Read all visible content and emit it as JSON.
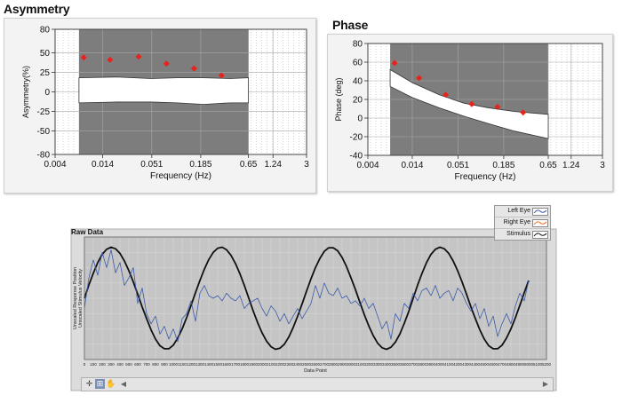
{
  "colors": {
    "plot_bg": "#7d7d7d",
    "band": "#ffffff",
    "marker": "#e8231b",
    "left_eye": "#3c5aa8",
    "right_eye": "#f26a2e",
    "stimulus": "#111111",
    "raw_bg": "#c5c5c5"
  },
  "chart_data": [
    {
      "type": "scatter",
      "title": "Asymmetry",
      "xlabel": "Frequency (Hz)",
      "ylabel": "Asymmetry(%)",
      "x_scale": "log",
      "x_ticks": [
        "0.004",
        "0.014",
        "0.051",
        "0.185",
        "0.65",
        "1.24",
        "3"
      ],
      "y_ticks": [
        "80",
        "50",
        "25",
        "0",
        "-25",
        "-50",
        "-80"
      ],
      "ylim": [
        -80,
        80
      ],
      "xlim": [
        0.004,
        3
      ],
      "shaded_range_hz": [
        0.0075,
        0.65
      ],
      "points": [
        {
          "x": 0.0085,
          "y": 44
        },
        {
          "x": 0.017,
          "y": 41
        },
        {
          "x": 0.036,
          "y": 45
        },
        {
          "x": 0.075,
          "y": 36
        },
        {
          "x": 0.155,
          "y": 30
        },
        {
          "x": 0.32,
          "y": 21
        }
      ],
      "band": {
        "x": [
          0.0075,
          0.02,
          0.05,
          0.1,
          0.2,
          0.4,
          0.65
        ],
        "upper": [
          18,
          19,
          17,
          18,
          18,
          17,
          18
        ],
        "lower": [
          -14,
          -13,
          -13,
          -14,
          -16,
          -14,
          -14
        ]
      }
    },
    {
      "type": "scatter",
      "title": "Phase",
      "xlabel": "Frequency (Hz)",
      "ylabel": "Phase (deg)",
      "x_scale": "log",
      "x_ticks": [
        "0.004",
        "0.014",
        "0.051",
        "0.185",
        "0.65",
        "1.24",
        "3"
      ],
      "y_ticks": [
        "80",
        "60",
        "40",
        "20",
        "0",
        "-20",
        "-40"
      ],
      "ylim": [
        -40,
        80
      ],
      "xlim": [
        0.004,
        3
      ],
      "shaded_range_hz": [
        0.0075,
        0.65
      ],
      "points": [
        {
          "x": 0.0085,
          "y": 59
        },
        {
          "x": 0.017,
          "y": 43
        },
        {
          "x": 0.036,
          "y": 25
        },
        {
          "x": 0.075,
          "y": 15
        },
        {
          "x": 0.155,
          "y": 12
        },
        {
          "x": 0.32,
          "y": 6
        }
      ],
      "band": {
        "x": [
          0.0075,
          0.014,
          0.03,
          0.06,
          0.12,
          0.25,
          0.65
        ],
        "upper": [
          52,
          38,
          25,
          16,
          11,
          7,
          4
        ],
        "lower": [
          34,
          22,
          11,
          2,
          -6,
          -14,
          -22
        ]
      }
    },
    {
      "type": "line",
      "title": "Raw Data",
      "xlabel": "Data Point",
      "ylabel": "Unscaled Response Position / Unscaled Stimulus Velocity",
      "ylabel_lines": [
        "Unscaled Response Position",
        "Unscaled Stimulus Velocity"
      ],
      "xlim": [
        0,
        5200
      ],
      "ylim": [
        -1.2,
        1.2
      ],
      "x_ticks": [
        "0",
        "100",
        "200",
        "300",
        "400",
        "500",
        "600",
        "700",
        "800",
        "900",
        "1000",
        "1100",
        "1200",
        "1300",
        "1400",
        "1500",
        "1600",
        "1700",
        "1800",
        "1900",
        "2000",
        "2100",
        "2200",
        "2300",
        "2400",
        "2500",
        "2600",
        "2700",
        "2800",
        "2900",
        "3000",
        "3100",
        "3200",
        "3300",
        "3400",
        "3500",
        "3600",
        "3700",
        "3800",
        "3900",
        "4000",
        "4100",
        "4200",
        "4300",
        "4400",
        "4500",
        "4600",
        "4700",
        "4800",
        "4900",
        "5000",
        "5100",
        "5200"
      ],
      "legend": [
        "Left Eye",
        "Right Eye",
        "Stimulus"
      ],
      "series": [
        {
          "name": "Stimulus",
          "x": [
            0,
            50,
            100,
            150,
            200,
            250,
            300,
            350,
            400,
            450,
            500,
            550,
            600,
            650,
            700,
            750,
            800,
            850,
            900,
            950,
            1000,
            1050,
            1100,
            1150,
            1200,
            1250,
            1300,
            1350,
            1400,
            1450,
            1500,
            1550,
            1600,
            1650,
            1700,
            1750,
            1800,
            1850,
            1900,
            1950,
            2000,
            2050,
            2100,
            2150,
            2200,
            2250,
            2300,
            2350,
            2400,
            2450,
            2500,
            2550,
            2600,
            2650,
            2700,
            2750,
            2800,
            2850,
            2900,
            2950,
            3000,
            3050,
            3100,
            3150,
            3200,
            3250,
            3300,
            3350,
            3400,
            3450,
            3500,
            3550,
            3600,
            3650,
            3700,
            3750,
            3800,
            3850,
            3900,
            3950,
            4000,
            4050,
            4100,
            4150,
            4200,
            4250,
            4300,
            4350,
            4400,
            4450,
            4500,
            4550,
            4600,
            4650,
            4700,
            4750,
            4800,
            4850,
            4900,
            4950,
            5000
          ],
          "y": [
            0.0,
            0.26,
            0.49,
            0.7,
            0.86,
            0.96,
            1.0,
            0.97,
            0.88,
            0.73,
            0.54,
            0.32,
            0.08,
            -0.17,
            -0.4,
            -0.62,
            -0.8,
            -0.93,
            -0.99,
            -0.99,
            -0.92,
            -0.78,
            -0.6,
            -0.38,
            -0.14,
            0.11,
            0.35,
            0.57,
            0.76,
            0.9,
            0.98,
            1.0,
            0.95,
            0.84,
            0.68,
            0.48,
            0.25,
            0.0,
            -0.25,
            -0.48,
            -0.68,
            -0.84,
            -0.95,
            -1.0,
            -0.98,
            -0.9,
            -0.76,
            -0.57,
            -0.35,
            -0.11,
            0.14,
            0.38,
            0.6,
            0.78,
            0.92,
            0.99,
            0.99,
            0.93,
            0.8,
            0.62,
            0.4,
            0.17,
            -0.08,
            -0.32,
            -0.54,
            -0.73,
            -0.88,
            -0.97,
            -1.0,
            -0.96,
            -0.86,
            -0.7,
            -0.49,
            -0.26,
            0.0,
            0.26,
            0.49,
            0.7,
            0.86,
            0.96,
            1.0,
            0.97,
            0.88,
            0.73,
            0.54,
            0.32,
            0.08,
            -0.17,
            -0.4,
            -0.62,
            -0.8,
            -0.93,
            -0.99,
            -0.99,
            -0.92,
            -0.78,
            -0.6,
            -0.38,
            -0.14,
            0.11,
            0.35
          ]
        },
        {
          "name": "Left Eye",
          "x": [
            0,
            50,
            100,
            150,
            200,
            250,
            300,
            350,
            400,
            450,
            500,
            550,
            600,
            650,
            700,
            750,
            800,
            850,
            900,
            950,
            1000,
            1050,
            1100,
            1150,
            1200,
            1250,
            1300,
            1350,
            1400,
            1450,
            1500,
            1550,
            1600,
            1650,
            1700,
            1750,
            1800,
            1850,
            1900,
            1950,
            2000,
            2050,
            2100,
            2150,
            2200,
            2250,
            2300,
            2350,
            2400,
            2450,
            2500,
            2550,
            2600,
            2650,
            2700,
            2750,
            2800,
            2850,
            2900,
            2950,
            3000,
            3050,
            3100,
            3150,
            3200,
            3250,
            3300,
            3350,
            3400,
            3450,
            3500,
            3550,
            3600,
            3650,
            3700,
            3750,
            3800,
            3850,
            3900,
            3950,
            4000,
            4050,
            4100,
            4150,
            4200,
            4250,
            4300,
            4350,
            4400,
            4450,
            4500,
            4550,
            4600,
            4650,
            4700,
            4750,
            4800,
            4850,
            4900,
            4950,
            5000
          ],
          "y": [
            -0.2,
            0.4,
            0.75,
            0.45,
            0.9,
            0.6,
            0.95,
            0.5,
            0.7,
            0.25,
            0.4,
            0.6,
            -0.1,
            0.2,
            -0.3,
            -0.5,
            -0.35,
            -0.7,
            -0.55,
            -0.8,
            -0.6,
            -0.85,
            -0.4,
            -0.3,
            -0.05,
            -0.45,
            0.1,
            0.25,
            0.05,
            0.0,
            0.05,
            -0.05,
            0.1,
            0.0,
            -0.05,
            0.05,
            -0.2,
            -0.1,
            -0.05,
            0.0,
            -0.2,
            -0.35,
            -0.15,
            -0.25,
            -0.45,
            -0.3,
            -0.5,
            -0.35,
            -0.2,
            -0.4,
            -0.25,
            -0.1,
            0.25,
            0.0,
            0.3,
            0.1,
            0.05,
            0.2,
            0.0,
            0.05,
            -0.1,
            -0.05,
            -0.15,
            0.0,
            -0.2,
            -0.1,
            -0.35,
            -0.6,
            -0.45,
            -0.8,
            -0.3,
            -0.45,
            -0.1,
            -0.2,
            0.1,
            -0.05,
            0.15,
            0.2,
            0.05,
            0.25,
            0.0,
            0.1,
            0.15,
            -0.05,
            0.2,
            0.1,
            -0.1,
            -0.25,
            -0.1,
            -0.4,
            -0.2,
            -0.55,
            -0.35,
            -0.75,
            -0.5,
            -0.3,
            -0.5,
            -0.15,
            0.1,
            -0.05,
            0.35
          ]
        },
        {
          "name": "Right Eye",
          "x": [],
          "y": []
        }
      ]
    }
  ],
  "toolbar": {
    "tools": [
      "crosshair-tool",
      "zoom-tool",
      "pan-tool"
    ]
  }
}
